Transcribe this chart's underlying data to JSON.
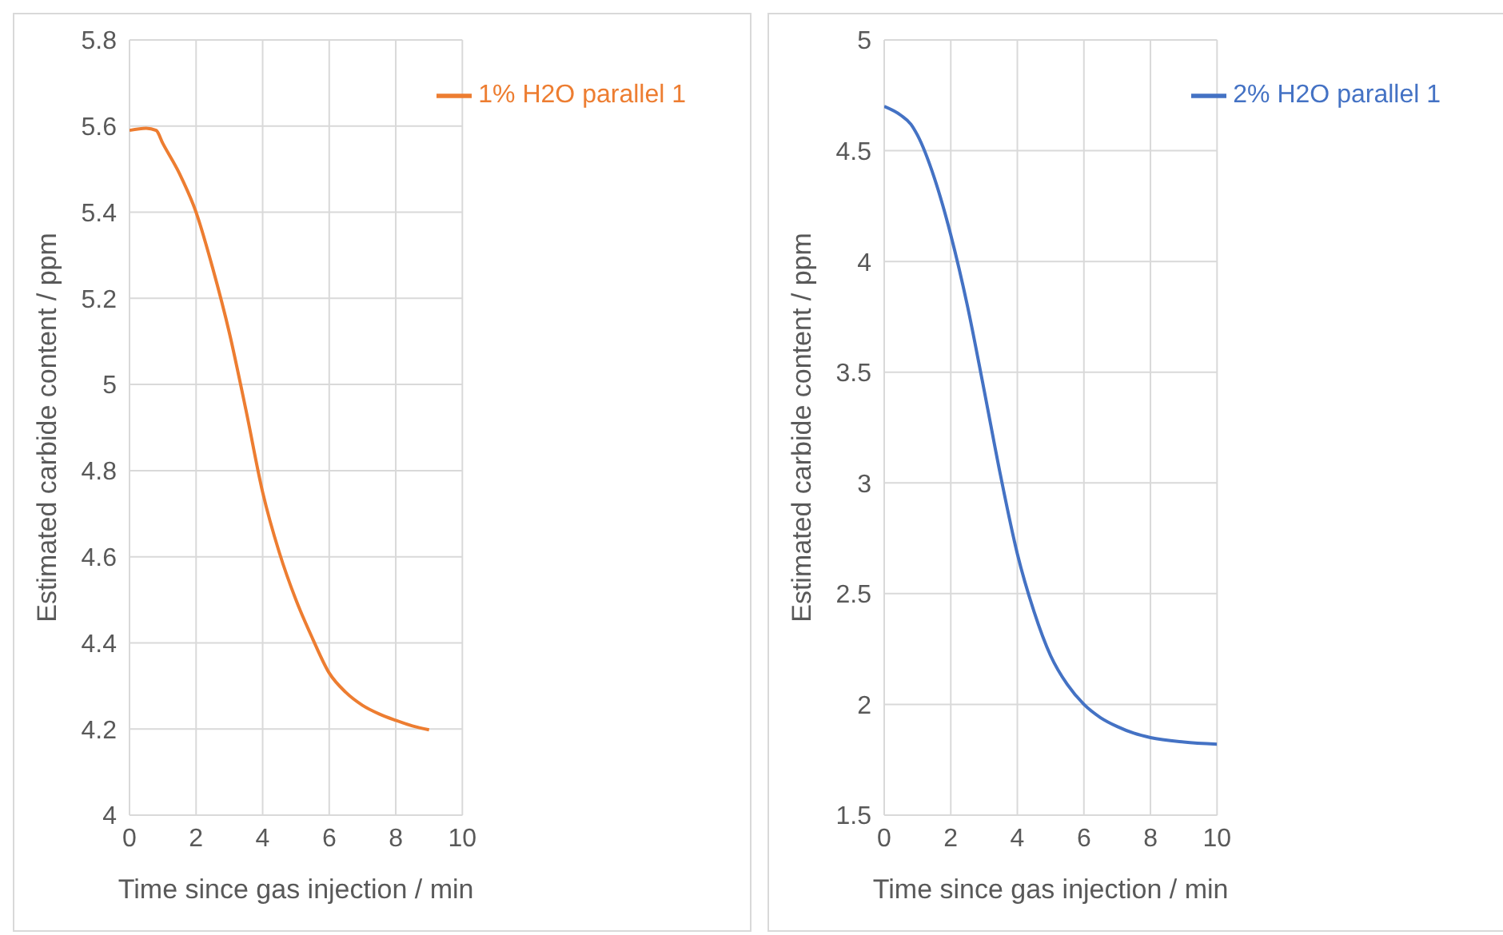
{
  "chart_data": [
    {
      "type": "line",
      "xlabel": "Time since gas injection / min",
      "ylabel": "Estimated carbide content / ppm",
      "x": [
        0,
        0.5,
        0.8,
        1,
        1.5,
        2,
        2.5,
        3,
        3.5,
        4,
        4.5,
        5,
        5.5,
        6,
        6.5,
        7,
        7.5,
        8,
        8.5,
        9
      ],
      "xlim": [
        0,
        10
      ],
      "xticks": [
        0,
        2,
        4,
        6,
        8,
        10
      ],
      "ylim": [
        4,
        5.8
      ],
      "yticks": [
        4,
        4.2,
        4.4,
        4.6,
        4.8,
        5,
        5.2,
        5.4,
        5.6,
        5.8
      ],
      "grid": true,
      "legend": "top right",
      "marker": "none",
      "line_style": "solid",
      "series": [
        {
          "name": "1% H2O parallel 1",
          "color": "#ed7d31",
          "values": [
            5.59,
            5.595,
            5.59,
            5.56,
            5.49,
            5.4,
            5.27,
            5.12,
            4.94,
            4.75,
            4.61,
            4.5,
            4.41,
            4.33,
            4.285,
            4.255,
            4.235,
            4.22,
            4.207,
            4.198
          ]
        }
      ]
    },
    {
      "type": "line",
      "xlabel": "Time since gas injection / min",
      "ylabel": "Estimated carbide content / ppm",
      "x": [
        0,
        0.5,
        0.8,
        1,
        1.5,
        2,
        2.5,
        3,
        3.5,
        4,
        4.5,
        5,
        5.5,
        6,
        6.5,
        7,
        7.5,
        8,
        9,
        10
      ],
      "xlim": [
        0,
        10
      ],
      "xticks": [
        0,
        2,
        4,
        6,
        8,
        10
      ],
      "ylim": [
        1.5,
        5
      ],
      "yticks": [
        1.5,
        2,
        2.5,
        3,
        3.5,
        4,
        4.5,
        5
      ],
      "grid": true,
      "legend": "top right",
      "marker": "none",
      "line_style": "solid",
      "series": [
        {
          "name": "2% H2O parallel 1",
          "color": "#4472c4",
          "values": [
            4.7,
            4.66,
            4.62,
            4.57,
            4.38,
            4.12,
            3.8,
            3.42,
            3.03,
            2.68,
            2.42,
            2.22,
            2.09,
            2.0,
            1.94,
            1.9,
            1.87,
            1.85,
            1.83,
            1.82
          ]
        }
      ]
    }
  ]
}
